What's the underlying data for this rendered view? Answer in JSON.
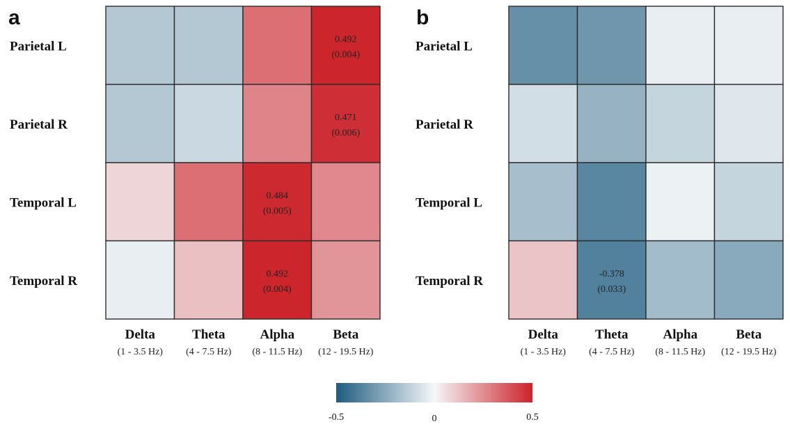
{
  "chart_data": [
    {
      "type": "heatmap",
      "panel": "a",
      "rows": [
        "Parietal L",
        "Parietal R",
        "Temporal L",
        "Temporal R"
      ],
      "columns": [
        {
          "name": "Delta",
          "range": "(1 - 3.5 Hz)"
        },
        {
          "name": "Theta",
          "range": "(4 - 7.5 Hz)"
        },
        {
          "name": "Alpha",
          "range": "(8 - 11.5 Hz)"
        },
        {
          "name": "Beta",
          "range": "(12 - 19.5 Hz)"
        }
      ],
      "values": [
        [
          -0.15,
          -0.15,
          0.32,
          0.492
        ],
        [
          -0.15,
          -0.1,
          0.27,
          0.471
        ],
        [
          0.08,
          0.32,
          0.484,
          0.26
        ],
        [
          -0.03,
          0.13,
          0.492,
          0.23
        ]
      ],
      "annotations": [
        {
          "row": 0,
          "col": 3,
          "value": "0.492",
          "p": "(0.004)"
        },
        {
          "row": 1,
          "col": 3,
          "value": "0.471",
          "p": "(0.006)"
        },
        {
          "row": 2,
          "col": 2,
          "value": "0.484",
          "p": "(0.005)"
        },
        {
          "row": 3,
          "col": 2,
          "value": "0.492",
          "p": "(0.004)"
        }
      ]
    },
    {
      "type": "heatmap",
      "panel": "b",
      "rows": [
        "Parietal L",
        "Parietal R",
        "Temporal L",
        "Temporal R"
      ],
      "columns": [
        {
          "name": "Delta",
          "range": "(1 - 3.5 Hz)"
        },
        {
          "name": "Theta",
          "range": "(4 - 7.5 Hz)"
        },
        {
          "name": "Alpha",
          "range": "(8 - 11.5 Hz)"
        },
        {
          "name": "Beta",
          "range": "(12 - 19.5 Hz)"
        }
      ],
      "values": [
        [
          -0.33,
          -0.31,
          -0.03,
          -0.03
        ],
        [
          -0.08,
          -0.22,
          -0.11,
          -0.05
        ],
        [
          -0.18,
          -0.36,
          -0.02,
          -0.11
        ],
        [
          0.12,
          -0.378,
          -0.19,
          -0.25
        ]
      ],
      "annotations": [
        {
          "row": 3,
          "col": 1,
          "value": "-0.378",
          "p": "(0.033)"
        }
      ]
    }
  ],
  "colorbar": {
    "min": -0.5,
    "max": 0.5,
    "ticks": [
      "-0.5",
      "0",
      "0.5"
    ],
    "colors": {
      "negative": "#1d5b7f",
      "mid": "#f5f7f9",
      "positive": "#cc2229"
    }
  }
}
